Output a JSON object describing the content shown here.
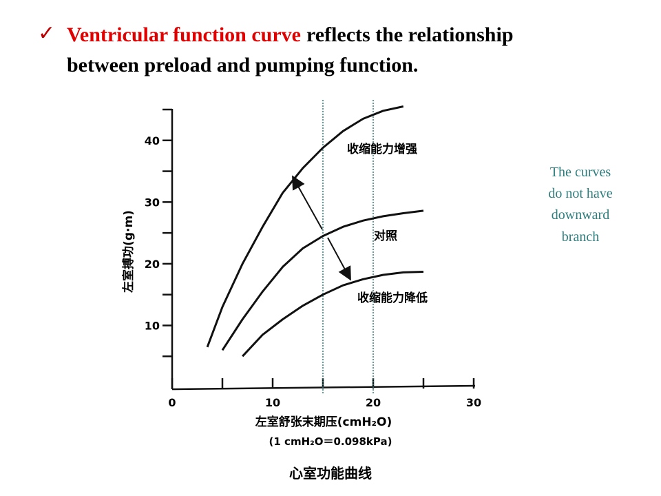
{
  "slide": {
    "bullet": {
      "highlight": "Ventricular function curve",
      "rest": [
        "reflects the relationship",
        "between preload and pumping function."
      ]
    },
    "note": [
      "The curves",
      "do not have",
      "downward",
      "branch"
    ]
  },
  "chart_data": {
    "type": "line",
    "title": "心室功能曲线",
    "x_label": "左室舒张末期压(cmH₂O)",
    "x_label_note": "(1 cmH₂O＝0.098kPa)",
    "y_label": "左室搏功(g·m)",
    "x": [
      3.5,
      5,
      7,
      9,
      11,
      13,
      15,
      17,
      19,
      21,
      23,
      25
    ],
    "series": [
      {
        "name": "收缩能力增强",
        "color": "#111111",
        "values": [
          6.5,
          13,
          20,
          26,
          31.5,
          35.5,
          38.8,
          41.5,
          43.5,
          44.8,
          45.5,
          null
        ]
      },
      {
        "name": "对照",
        "color": "#111111",
        "values": [
          null,
          6,
          11,
          15.5,
          19.5,
          22.5,
          24.5,
          26,
          27,
          27.7,
          28.2,
          28.6
        ]
      },
      {
        "name": "收缩能力降低",
        "color": "#111111",
        "values": [
          null,
          null,
          5,
          8.5,
          11,
          13.2,
          15,
          16.5,
          17.5,
          18.2,
          18.6,
          18.7
        ]
      }
    ],
    "xlim": [
      0,
      30
    ],
    "ylim": [
      0,
      45
    ],
    "xticks": [
      0,
      10,
      20,
      30
    ],
    "yticks": [
      10,
      20,
      30,
      40
    ],
    "x_minor_ticks": [
      5,
      15,
      25
    ],
    "y_minor_ticks": [
      5,
      15,
      25,
      35,
      45
    ],
    "vlines": [
      15,
      20
    ],
    "vline_color": "#2e7d7d"
  }
}
